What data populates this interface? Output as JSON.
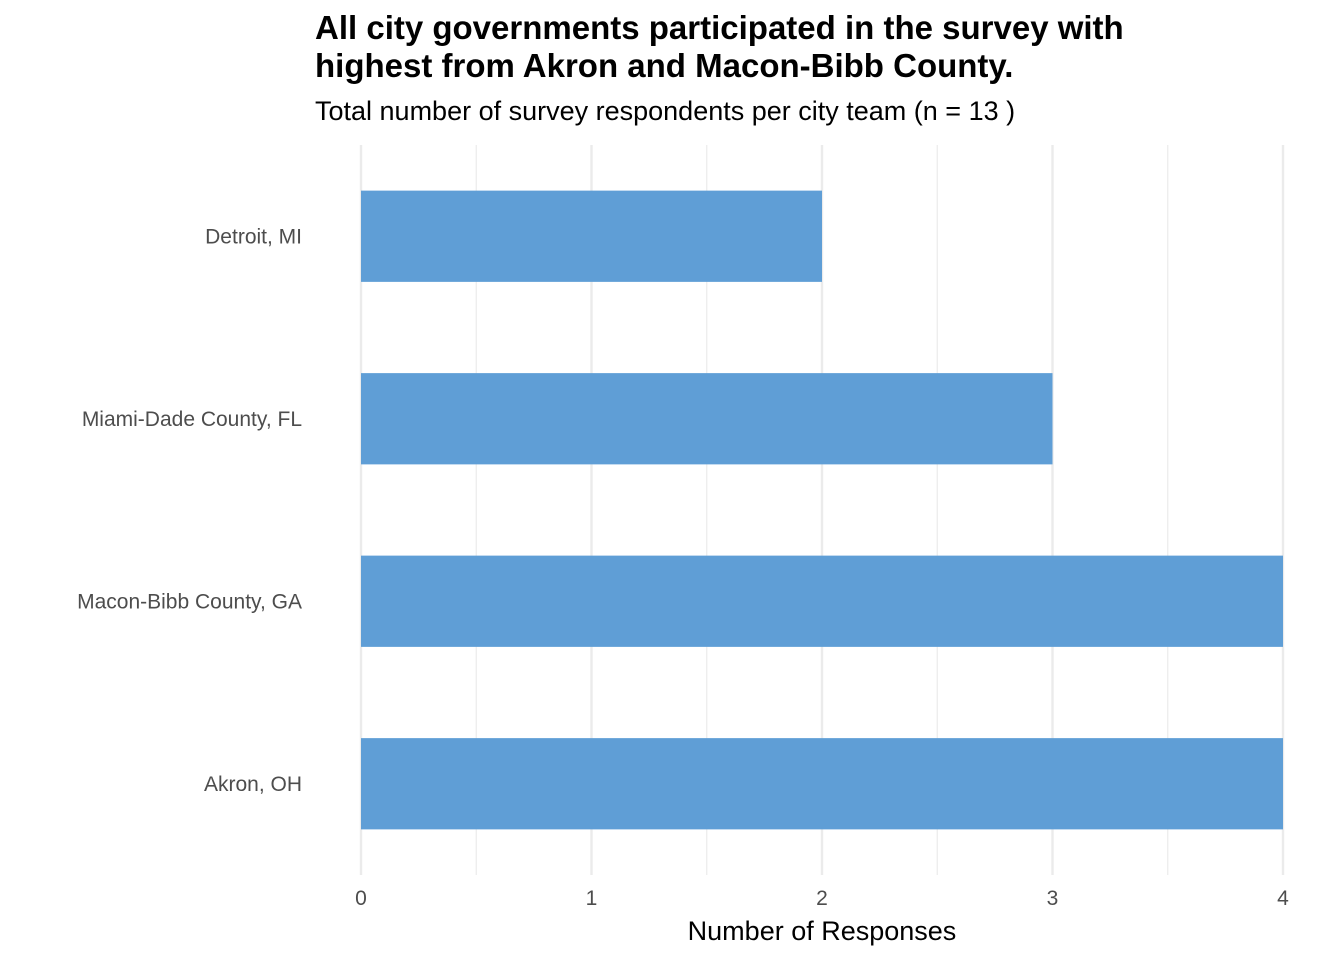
{
  "chart_data": {
    "type": "bar",
    "orientation": "horizontal",
    "title_lines": [
      "All city governments participated in the survey with",
      "highest from Akron and Macon-Bibb County."
    ],
    "subtitle": "Total number of survey respondents per city team (n = 13 )",
    "xlabel": "Number of Responses",
    "ylabel": "",
    "categories": [
      "Detroit, MI",
      "Miami-Dade County, FL",
      "Macon-Bibb County, GA",
      "Akron, OH"
    ],
    "values": [
      2,
      3,
      4,
      4
    ],
    "xlim": [
      0,
      4
    ],
    "xticks": [
      "0",
      "1",
      "2",
      "3",
      "4"
    ],
    "grid": true,
    "bar_color": "#5F9ED6",
    "grid_color": "#EBEBEB"
  }
}
